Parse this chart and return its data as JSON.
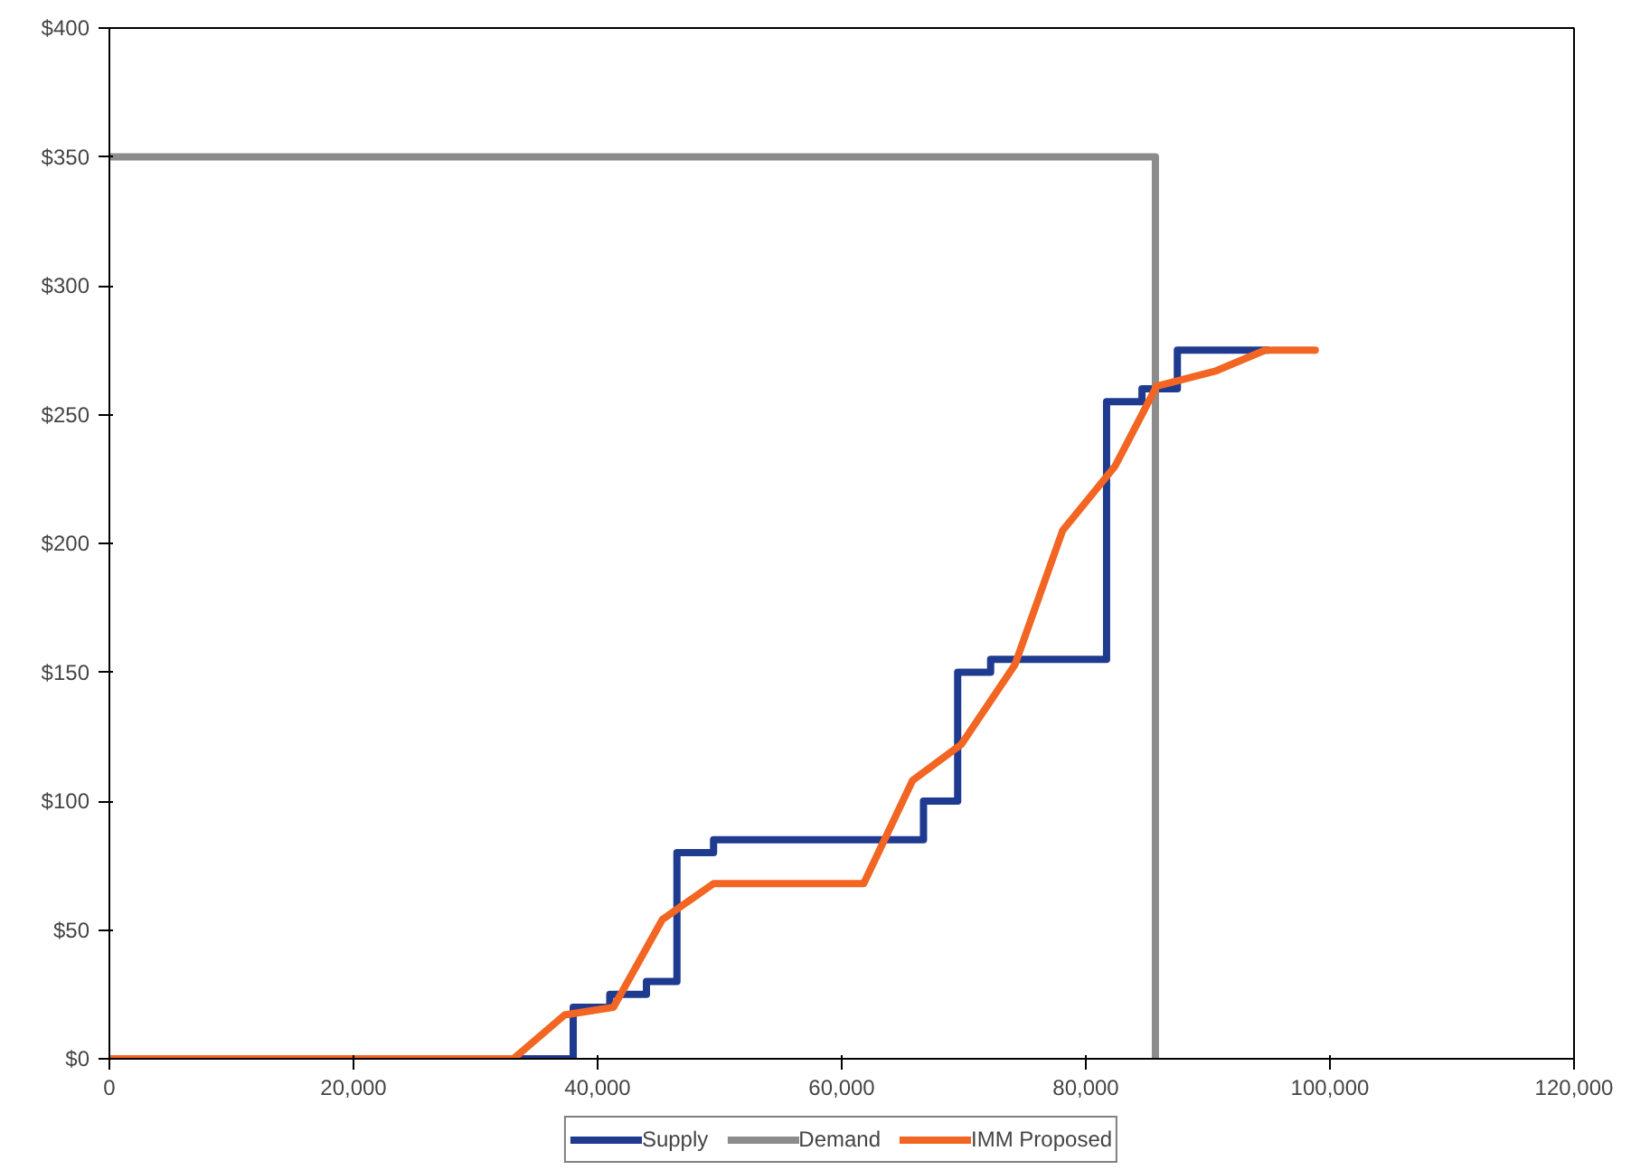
{
  "chart_data": {
    "type": "line",
    "legend": "bottom",
    "grid": false,
    "marker": "none",
    "line_style": "solid",
    "xlim": [
      0,
      120000
    ],
    "ylim": [
      0,
      400
    ],
    "xticks": [
      0,
      {
        "value": 20000,
        "label": "20,000"
      },
      {
        "value": 40000,
        "label": "40,000"
      },
      {
        "value": 60000,
        "label": "60,000"
      },
      {
        "value": 80000,
        "label": "80,000"
      },
      {
        "value": 100000,
        "label": "100,000"
      },
      {
        "value": 120000,
        "label": "120,000"
      }
    ],
    "yticks": [
      {
        "value": 0,
        "label": "$0"
      },
      {
        "value": 50,
        "label": "$50"
      },
      {
        "value": 100,
        "label": "$100"
      },
      {
        "value": 150,
        "label": "$150"
      },
      {
        "value": 200,
        "label": "$200"
      },
      {
        "value": 250,
        "label": "$250"
      },
      {
        "value": 300,
        "label": "$300"
      },
      {
        "value": 350,
        "label": "$350"
      },
      {
        "value": 400,
        "label": "$400"
      }
    ],
    "series": [
      {
        "name": "Supply",
        "type": "step",
        "color": "#1f3b8f",
        "x": [
          0,
          38000,
          41000,
          44000,
          46500,
          49500,
          66700,
          69500,
          72200,
          81700,
          84600,
          87500,
          95000
        ],
        "values": [
          0,
          20,
          25,
          30,
          80,
          85,
          100,
          150,
          155,
          255,
          260,
          275,
          275
        ]
      },
      {
        "name": "Demand",
        "type": "step",
        "color": "#8c8c8c",
        "x": [
          0,
          85700
        ],
        "values": [
          350,
          0
        ]
      },
      {
        "name": "IMM Proposed",
        "color": "#f26522",
        "x": [
          0,
          33100,
          37300,
          41300,
          45300,
          49500,
          61800,
          65800,
          69800,
          74200,
          78100,
          82400,
          85800,
          90700,
          94700,
          98800
        ],
        "values": [
          0,
          0,
          17,
          20,
          54,
          68,
          68,
          108,
          122,
          153,
          205,
          230,
          261,
          267,
          275,
          275
        ]
      }
    ]
  }
}
